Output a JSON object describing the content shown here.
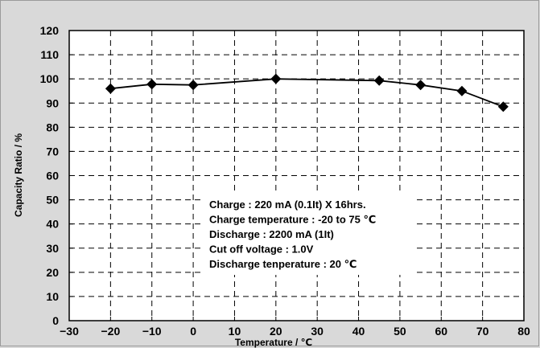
{
  "chart_data": {
    "type": "line",
    "xlabel": "Temperature / ℃",
    "ylabel": "Capacity Ratio / %",
    "xlim": [
      -30,
      80
    ],
    "ylim": [
      0,
      120
    ],
    "x_ticks": [
      "-30",
      "-20",
      "-10",
      "0",
      "10",
      "20",
      "30",
      "40",
      "50",
      "60",
      "70",
      "80"
    ],
    "y_ticks": [
      "0",
      "10",
      "20",
      "30",
      "40",
      "50",
      "60",
      "70",
      "80",
      "90",
      "100",
      "110",
      "120"
    ],
    "grid": true,
    "series": [
      {
        "x": [
          -20,
          -10,
          0,
          20,
          45,
          55,
          65,
          75
        ],
        "y": [
          96,
          97.8,
          97.5,
          100,
          99.3,
          97.5,
          95,
          88.5
        ],
        "color": "#000000",
        "marker": "diamond"
      }
    ],
    "annotation_lines": [
      "Charge : 220 mA (0.1It) X 16hrs.",
      "Charge temperature : -20 to 75 ℃",
      "Discharge : 2200 mA (1It)",
      "Cut off voltage : 1.0V",
      "Discharge tenperature : 20 ℃"
    ]
  }
}
